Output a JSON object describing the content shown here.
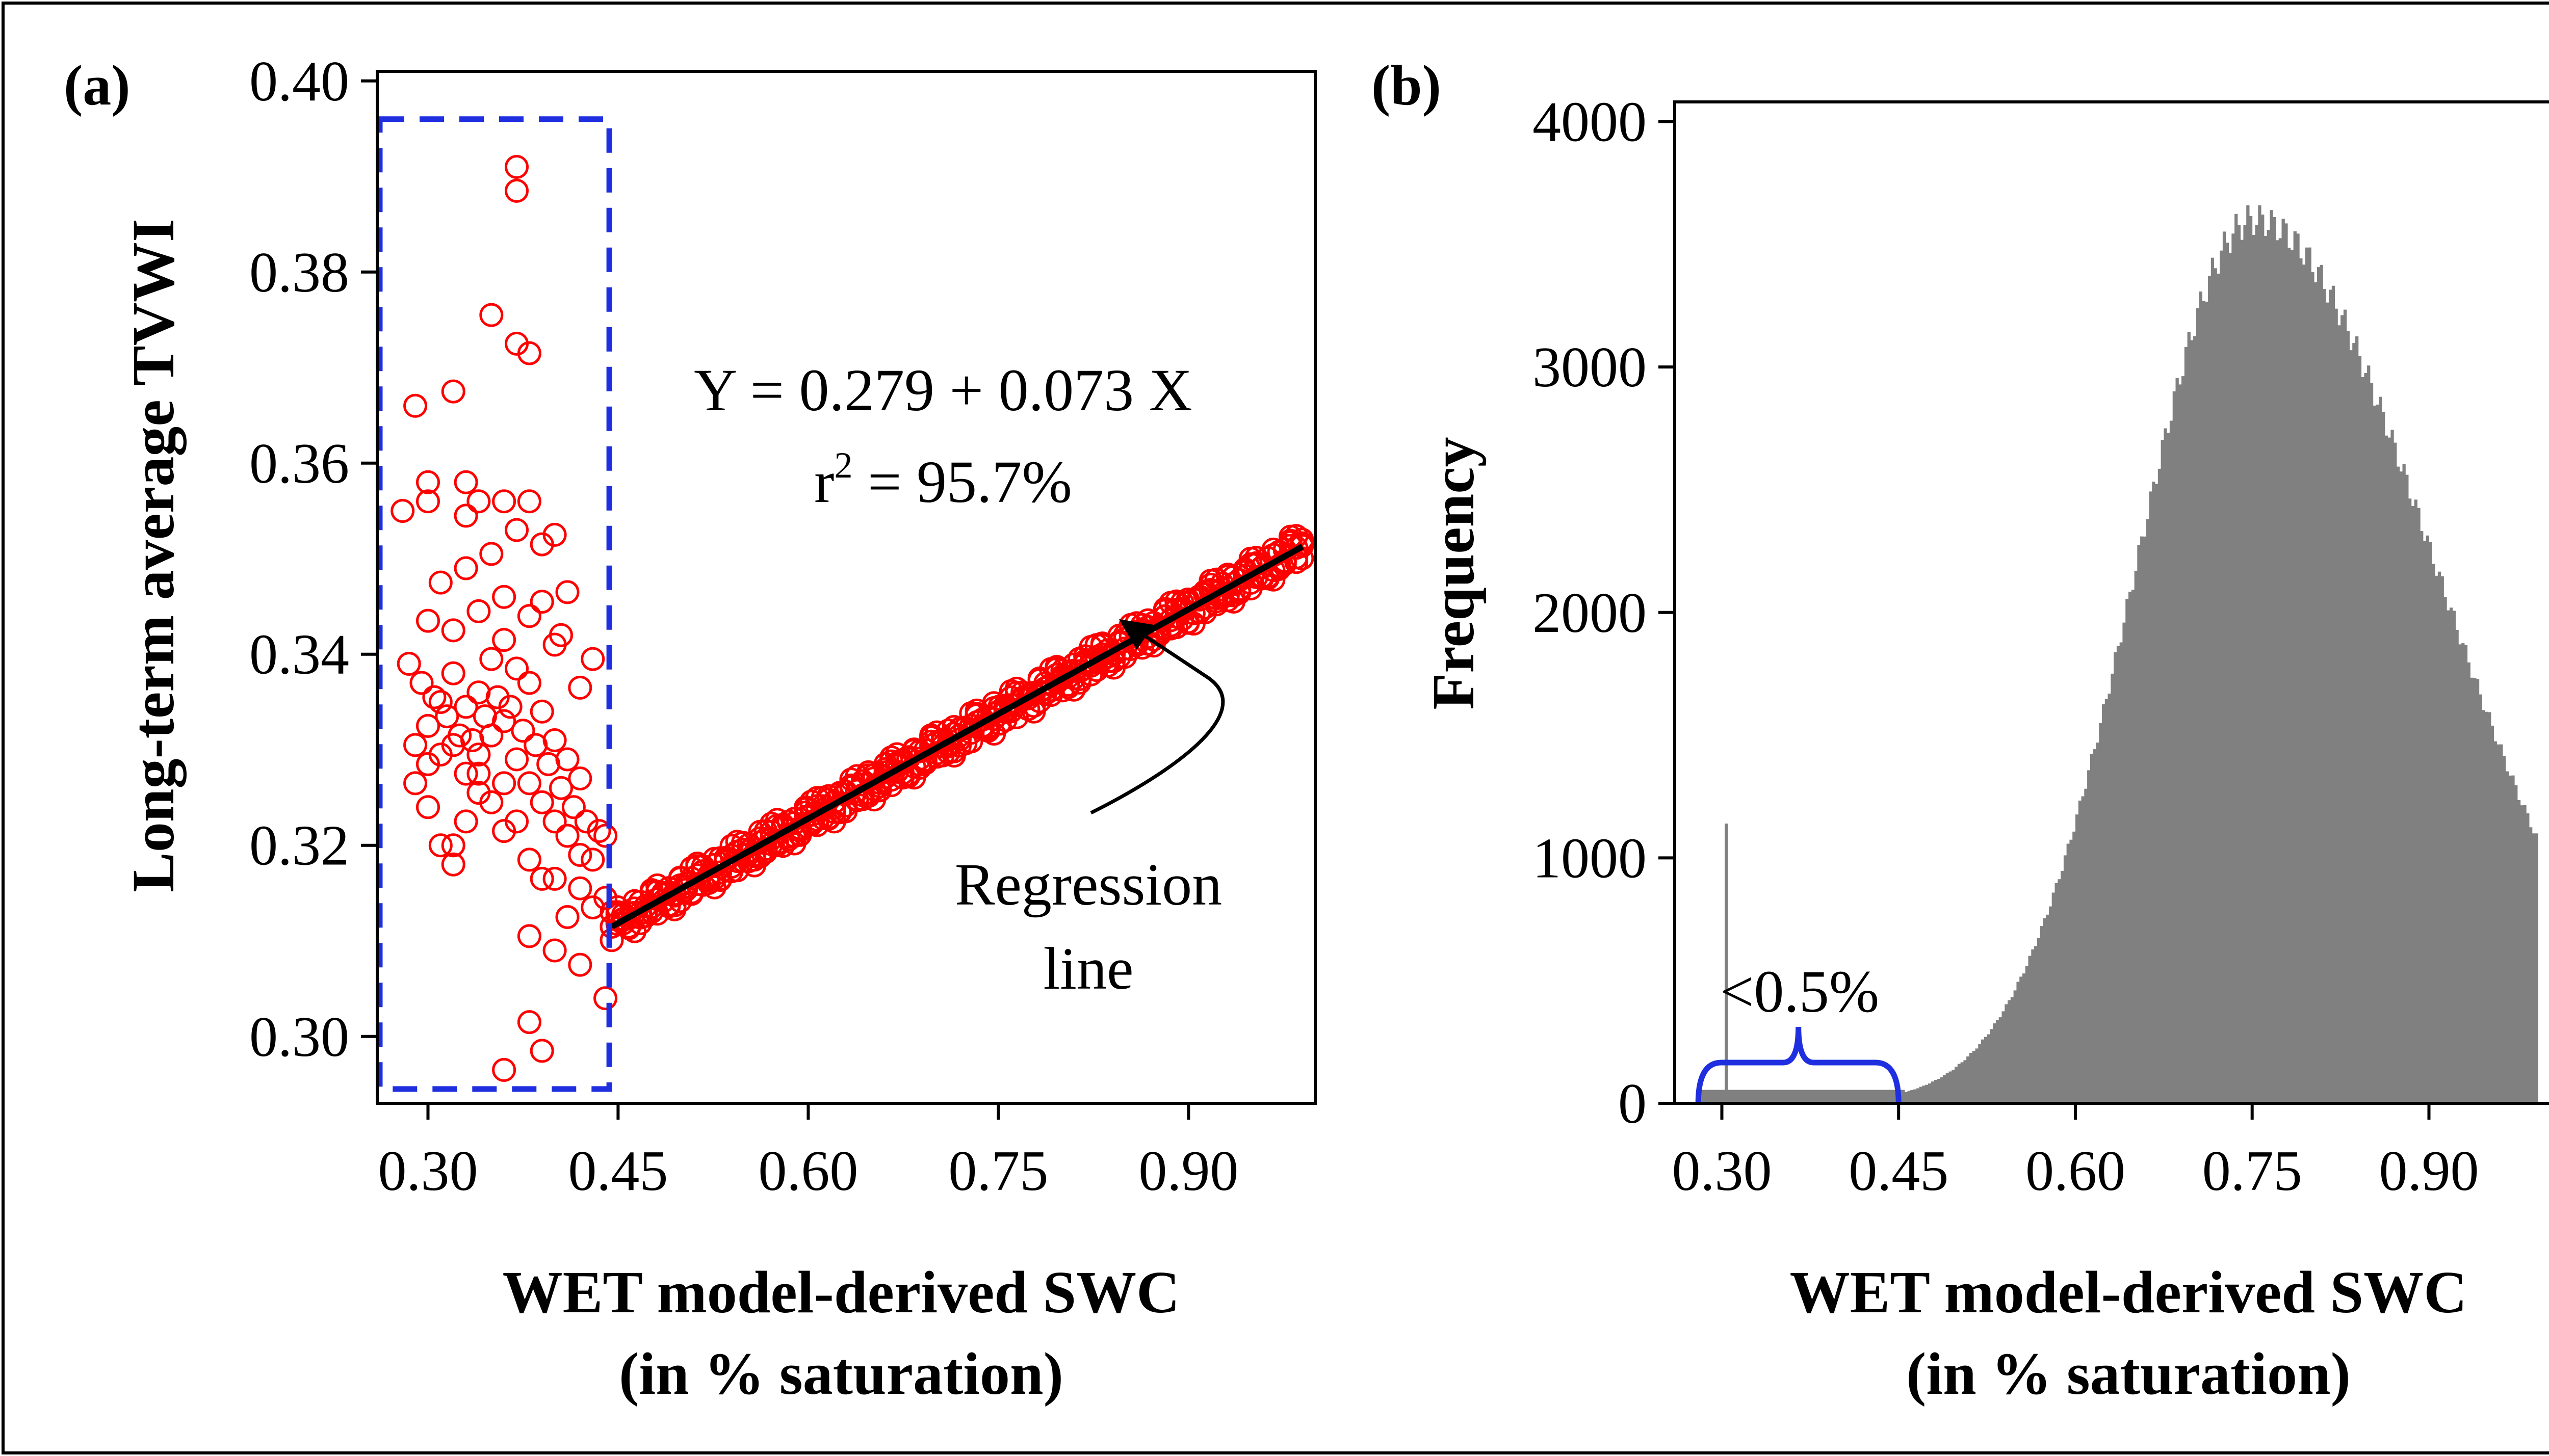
{
  "figure": {
    "outer_border_color": "#000000"
  },
  "chart_data": [
    {
      "panel_label": "(a)",
      "type": "scatter",
      "xlabel_line1": "WET model-derived SWC",
      "xlabel_line2": "(in % saturation)",
      "ylabel": "Long-term average TVWI",
      "xlim": [
        0.26,
        1.0
      ],
      "ylim": [
        0.293,
        0.401
      ],
      "x_ticks": [
        0.3,
        0.45,
        0.6,
        0.75,
        0.9
      ],
      "x_tick_labels": [
        "0.30",
        "0.45",
        "0.60",
        "0.75",
        "0.90"
      ],
      "y_ticks": [
        0.3,
        0.32,
        0.34,
        0.36,
        0.38,
        0.4
      ],
      "y_tick_labels": [
        "0.30",
        "0.32",
        "0.34",
        "0.36",
        "0.38",
        "0.40"
      ],
      "marker_color": "#ff0000",
      "regression": {
        "intercept": 0.279,
        "slope": 0.073,
        "x_range": [
          0.445,
          0.99
        ],
        "color": "#000000"
      },
      "equation_text": "Y = 0.279 + 0.073 X",
      "r2_prefix": "r",
      "r2_superscript": "2",
      "r2_suffix": " = 95.7%",
      "annotation_line1": "Regression",
      "annotation_line2": "line",
      "highlight_box": {
        "x_range": [
          0.262,
          0.443
        ],
        "y_range": [
          0.2945,
          0.396
        ],
        "color": "#1f2fe0"
      },
      "scatter_points": {
        "x": [
          0.29,
          0.3,
          0.31,
          0.32,
          0.33,
          0.34,
          0.35,
          0.36,
          0.37,
          0.38,
          0.39,
          0.4,
          0.41,
          0.42,
          0.29,
          0.3,
          0.31,
          0.32,
          0.33,
          0.34,
          0.35,
          0.36,
          0.37,
          0.38,
          0.39,
          0.4,
          0.41,
          0.42,
          0.43,
          0.3,
          0.32,
          0.34,
          0.36,
          0.38,
          0.4,
          0.42,
          0.31,
          0.33,
          0.35,
          0.37,
          0.39,
          0.41,
          0.43,
          0.285,
          0.295,
          0.305,
          0.315,
          0.325,
          0.335,
          0.345,
          0.355,
          0.365,
          0.375,
          0.385,
          0.395,
          0.405,
          0.415,
          0.425,
          0.435,
          0.44,
          0.3,
          0.32,
          0.34,
          0.36,
          0.38,
          0.4,
          0.42,
          0.44,
          0.31,
          0.33,
          0.35,
          0.37,
          0.39,
          0.41,
          0.43,
          0.32,
          0.34,
          0.36,
          0.38,
          0.4,
          0.42,
          0.44,
          0.37,
          0.37,
          0.38,
          0.35,
          0.37,
          0.38,
          0.3,
          0.32,
          0.29,
          0.33,
          0.34,
          0.36,
          0.4,
          0.39,
          0.405,
          0.38,
          0.39,
          0.36,
          0.28,
          0.3,
          0.33
        ],
        "y": [
          0.3305,
          0.3325,
          0.335,
          0.338,
          0.3345,
          0.336,
          0.3395,
          0.3415,
          0.3385,
          0.337,
          0.334,
          0.331,
          0.329,
          0.327,
          0.3265,
          0.3285,
          0.3295,
          0.3305,
          0.3275,
          0.3295,
          0.3315,
          0.333,
          0.329,
          0.3265,
          0.3245,
          0.3225,
          0.321,
          0.319,
          0.3185,
          0.3435,
          0.3425,
          0.3445,
          0.346,
          0.344,
          0.341,
          0.3365,
          0.3475,
          0.349,
          0.3505,
          0.353,
          0.3515,
          0.3465,
          0.3395,
          0.339,
          0.337,
          0.3355,
          0.3335,
          0.3315,
          0.331,
          0.3335,
          0.3355,
          0.3345,
          0.332,
          0.3305,
          0.3285,
          0.326,
          0.324,
          0.3225,
          0.3215,
          0.321,
          0.324,
          0.32,
          0.3275,
          0.3215,
          0.3185,
          0.3165,
          0.3155,
          0.3145,
          0.32,
          0.3225,
          0.3245,
          0.3225,
          0.3165,
          0.3125,
          0.3135,
          0.318,
          0.3255,
          0.3265,
          0.3105,
          0.309,
          0.3075,
          0.304,
          0.391,
          0.3885,
          0.3715,
          0.3755,
          0.3725,
          0.356,
          0.356,
          0.3675,
          0.366,
          0.358,
          0.356,
          0.356,
          0.3525,
          0.3455,
          0.342,
          0.3015,
          0.2985,
          0.2965,
          0.355,
          0.358,
          0.3545
        ],
        "band_x_start": 0.445,
        "band_x_end": 0.99,
        "band_step": 0.0045
      }
    },
    {
      "panel_label": "(b)",
      "type": "bar",
      "xlabel_line1": "WET model-derived SWC",
      "xlabel_line2": "(in % saturation)",
      "ylabel": "Frequency",
      "xlim": [
        0.26,
        1.03
      ],
      "ylim": [
        0,
        4080
      ],
      "x_ticks": [
        0.3,
        0.45,
        0.6,
        0.75,
        0.9
      ],
      "x_tick_labels": [
        "0.30",
        "0.45",
        "0.60",
        "0.75",
        "0.90"
      ],
      "y_ticks": [
        0,
        1000,
        2000,
        3000,
        4000
      ],
      "y_tick_labels": [
        "0",
        "1000",
        "2000",
        "3000",
        "4000"
      ],
      "bar_color": "#808080",
      "histogram": {
        "bin_width": 0.0025,
        "spike_x": 0.302,
        "spike_value": 1140,
        "low_region_value": 55,
        "low_region_range": [
          0.28,
          0.455
        ],
        "peak_x": 0.75,
        "peak_value": 3600,
        "left_sigma": 0.1,
        "right_sigma": 0.155,
        "end_x": 0.99,
        "end_value": 1480
      },
      "bracket_label": "<0.5%",
      "bracket": {
        "x_range": [
          0.28,
          0.45
        ],
        "color": "#1f2fe0"
      }
    }
  ]
}
